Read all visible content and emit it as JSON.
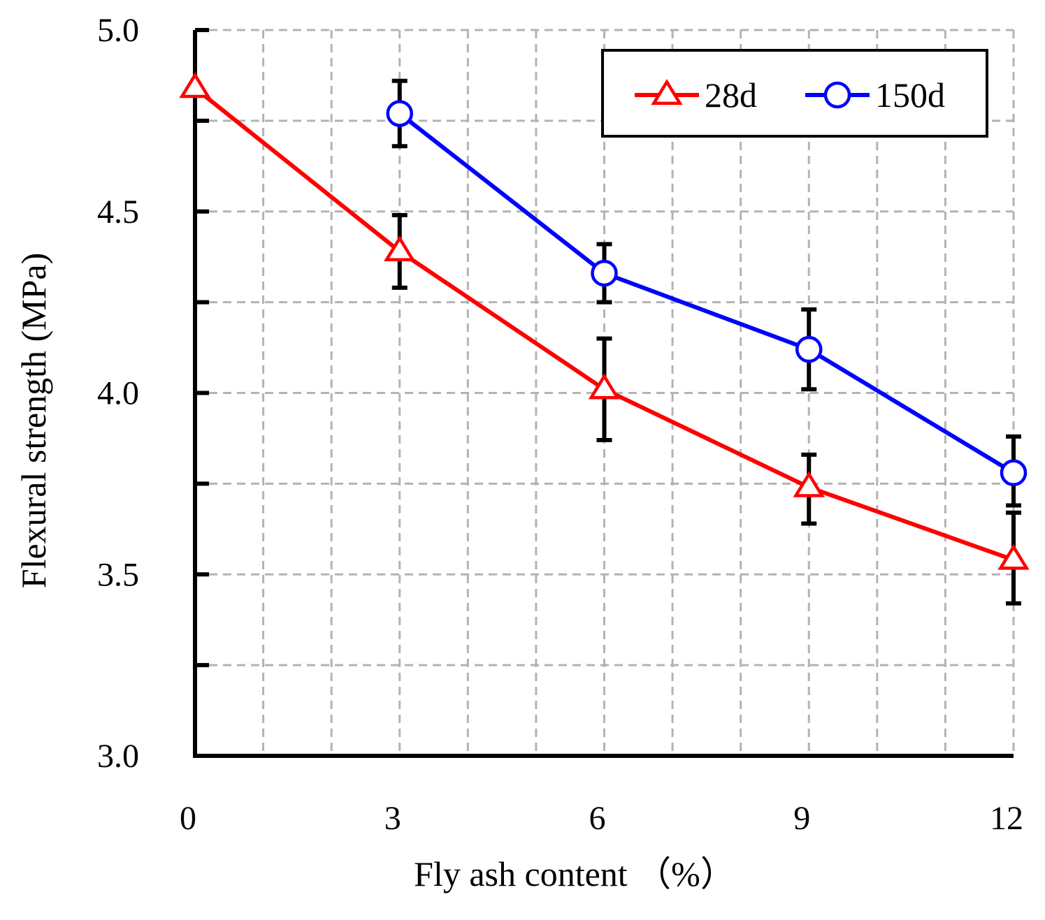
{
  "chart_data": {
    "type": "line",
    "title": "",
    "xlabel": "Fly ash content （%）",
    "ylabel": "Flexural strength (MPa)",
    "xlim": [
      0,
      12
    ],
    "ylim": [
      3.0,
      5.0
    ],
    "xticks": [
      0,
      3,
      6,
      9,
      12
    ],
    "xtick_labels": [
      "0",
      "3",
      "6",
      "9",
      "12"
    ],
    "yticks": [
      3.0,
      3.5,
      4.0,
      4.5,
      5.0
    ],
    "ytick_labels": [
      "3.0",
      "3.5",
      "4.0",
      "4.5",
      "5.0"
    ],
    "grid": true,
    "legend_position": "top-right",
    "series": [
      {
        "name": "28d",
        "color": "#ff0000",
        "marker": "triangle",
        "x": [
          0,
          3,
          6,
          9,
          12
        ],
        "y": [
          4.84,
          4.39,
          4.01,
          3.74,
          3.54
        ],
        "err_low": [
          null,
          4.29,
          3.87,
          3.64,
          3.42
        ],
        "err_high": [
          null,
          4.49,
          4.15,
          3.83,
          3.67
        ]
      },
      {
        "name": "150d",
        "color": "#0000ff",
        "marker": "circle",
        "x": [
          3,
          6,
          9,
          12
        ],
        "y": [
          4.77,
          4.33,
          4.12,
          3.78
        ],
        "err_low": [
          4.68,
          4.25,
          4.01,
          3.69
        ],
        "err_high": [
          4.86,
          4.41,
          4.23,
          3.88
        ]
      }
    ]
  }
}
